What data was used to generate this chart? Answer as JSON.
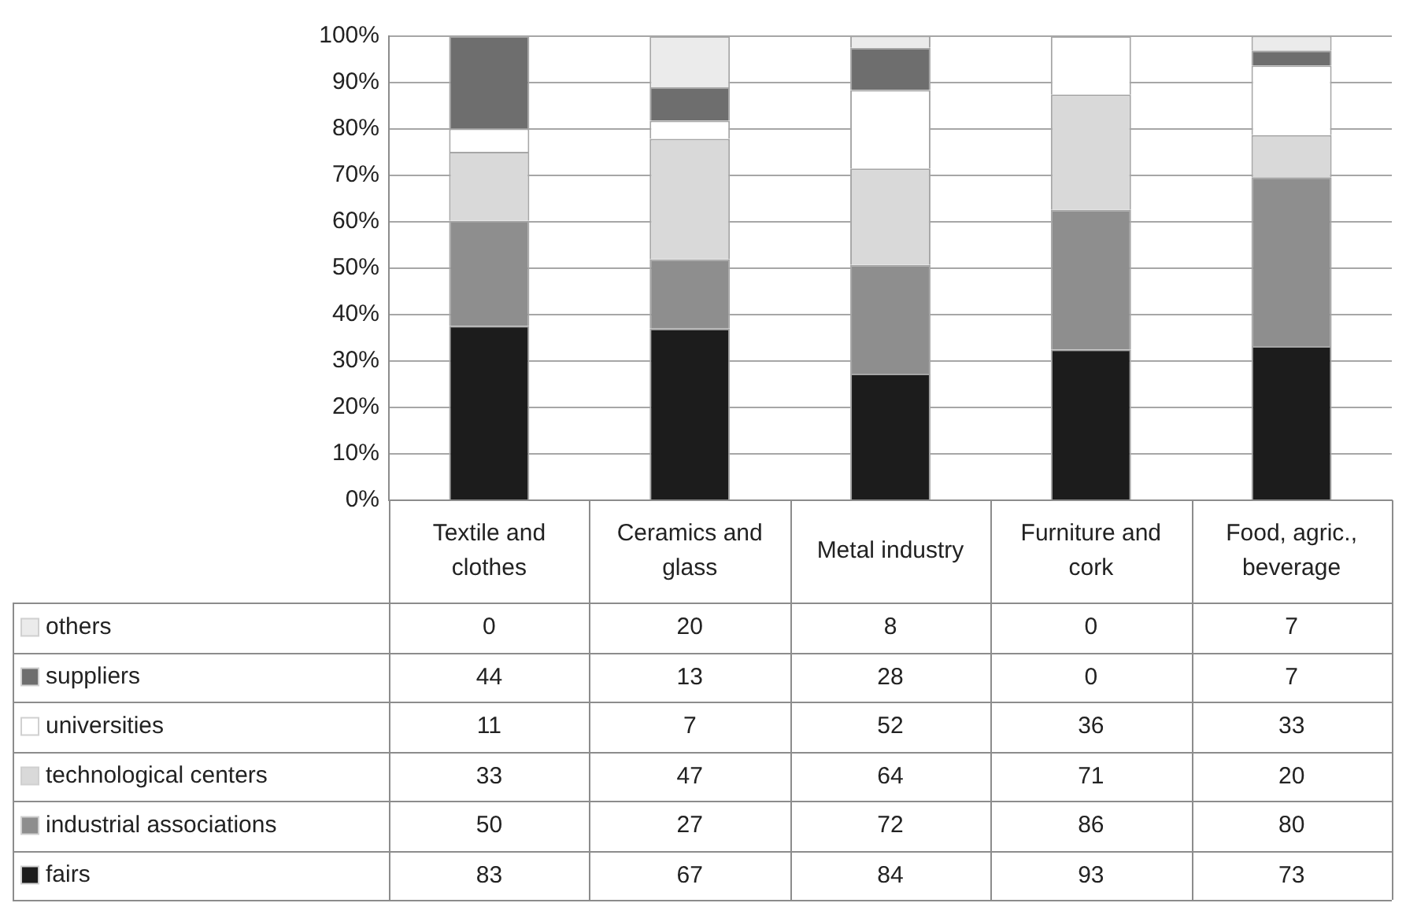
{
  "chart_data": [
    {
      "type": "bar",
      "stacked": true,
      "categories": [
        "Textile and clothes",
        "Ceramics and glass",
        "Metal industry",
        "Furniture and cork",
        "Food, agric., beverage"
      ],
      "ylim": [
        0,
        100
      ],
      "yticks": [
        {
          "value": 0,
          "label": "0%"
        },
        {
          "value": 10,
          "label": "10%"
        },
        {
          "value": 20,
          "label": "20%"
        },
        {
          "value": 30,
          "label": "30%"
        },
        {
          "value": 40,
          "label": "40%"
        },
        {
          "value": 50,
          "label": "50%"
        },
        {
          "value": 60,
          "label": "60%"
        },
        {
          "value": 70,
          "label": "70%"
        },
        {
          "value": 80,
          "label": "80%"
        },
        {
          "value": 90,
          "label": "90%"
        },
        {
          "value": 100,
          "label": "100%"
        }
      ],
      "grid": "y",
      "legend": "bottom",
      "series": [
        {
          "name": "fairs",
          "color": "#1c1c1c",
          "values": [
            37.6,
            37.0,
            27.3,
            32.5,
            33.2
          ]
        },
        {
          "name": "industrial associations",
          "color": "#8e8e8e",
          "values": [
            22.6,
            14.9,
            23.4,
            30.1,
            36.4
          ]
        },
        {
          "name": "technological centers",
          "color": "#d9d9d9",
          "values": [
            14.9,
            26.0,
            20.8,
            24.8,
            9.1
          ]
        },
        {
          "name": "universities",
          "color": "#ffffff",
          "values": [
            5.0,
            3.9,
            16.9,
            12.6,
            15.0
          ]
        },
        {
          "name": "suppliers",
          "color": "#6e6e6e",
          "values": [
            19.9,
            7.2,
            9.1,
            0,
            3.2
          ]
        },
        {
          "name": "others",
          "color": "#ebebeb",
          "values": [
            0,
            11.0,
            2.6,
            0,
            3.2
          ]
        }
      ]
    },
    {
      "type": "other",
      "annotations": [
        "0",
        "20",
        "8",
        "0",
        "7",
        "44",
        "13",
        "28",
        "0",
        "7",
        "11",
        "7",
        "52",
        "36",
        "33",
        "33",
        "47",
        "64",
        "71",
        "20",
        "50",
        "27",
        "72",
        "86",
        "80",
        "83",
        "67",
        "84",
        "93",
        "73"
      ]
    }
  ]
}
